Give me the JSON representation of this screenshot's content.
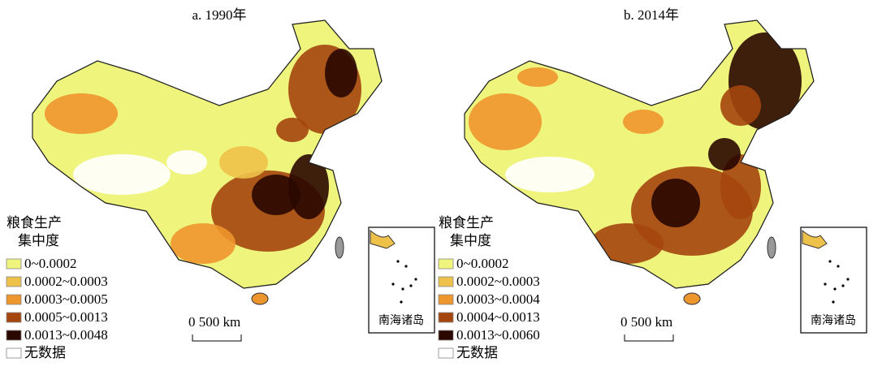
{
  "panels": [
    {
      "title": "a. 1990年",
      "legend": {
        "title": [
          "粮食生产",
          "集中度"
        ],
        "items": [
          {
            "label": "0~0.0002",
            "color": "#eef47c"
          },
          {
            "label": "0.0002~0.0003",
            "color": "#eec24a"
          },
          {
            "label": "0.0003~0.0005",
            "color": "#ee962e"
          },
          {
            "label": "0.0005~0.0013",
            "color": "#a4460e"
          },
          {
            "label": "0.0013~0.0048",
            "color": "#2a0800"
          },
          {
            "label": "无数据",
            "color": "#ffffff"
          }
        ]
      },
      "scale_label": "0  500 km",
      "inset_label": "南海诸岛"
    },
    {
      "title": "b. 2014年",
      "legend": {
        "title": [
          "粮食生产",
          "集中度"
        ],
        "items": [
          {
            "label": "0~0.0002",
            "color": "#eef47c"
          },
          {
            "label": "0.0002~0.0003",
            "color": "#eec24a"
          },
          {
            "label": "0.0003~0.0004",
            "color": "#ee962e"
          },
          {
            "label": "0.0004~0.0013",
            "color": "#a4460e"
          },
          {
            "label": "0.0013~0.0060",
            "color": "#2a0800"
          },
          {
            "label": "无数据",
            "color": "#ffffff"
          }
        ]
      },
      "scale_label": "0  500 km",
      "inset_label": "南海诸岛"
    }
  ]
}
